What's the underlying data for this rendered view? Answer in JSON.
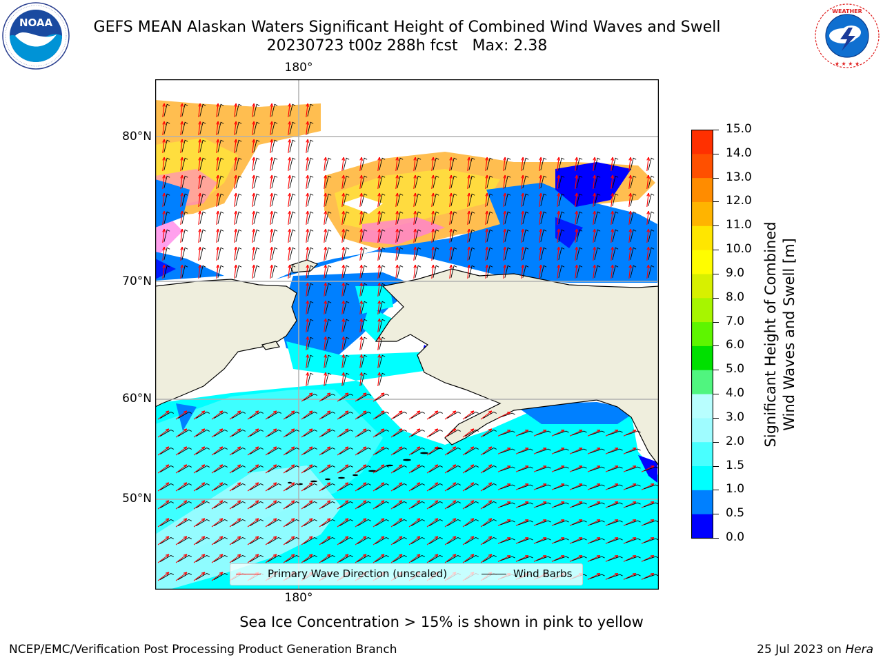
{
  "header": {
    "title": "GEFS MEAN Alaskan Waters Significant Height of Combined Wind Waves and Swell",
    "subtitle": "20230723 t00z 288h fcst   Max: 2.38"
  },
  "logos": {
    "left": {
      "name": "NOAA",
      "ring_text": "NATIONAL OCEANIC AND ATMOSPHERIC ADMINISTRATION · U.S. DEPARTMENT OF COMMERCE"
    },
    "right": {
      "ring_text": "NATIONAL WEATHER SERVICE"
    }
  },
  "map": {
    "lon_label_top": "180°",
    "lon_label_bottom": "180°",
    "lat_labels": [
      "80°N",
      "70°N",
      "60°N",
      "50°N"
    ],
    "legend": {
      "wave_label": "Primary Wave Direction (unscaled)",
      "wind_label": "Wind Barbs",
      "wave_color": "#ff0000",
      "wind_color": "#000000"
    },
    "colors": {
      "land": "#efeedd",
      "ice_pink": "#ff77e6",
      "ice_orange": "#ffbe50",
      "ice_yellow": "#ffe13c",
      "wave_blue": "#0080ff",
      "wave_darkblue": "#0000ff",
      "wave_cyan": "#00ffff",
      "wave_lightcyan": "#9ffcff",
      "grid": "#b0b0b0"
    }
  },
  "colorbar": {
    "label": "Significant Height of Combined Wind Waves and Swell [m]",
    "label_lines": [
      "Significant Height of Combined",
      "Wind Waves and Swell [m]"
    ],
    "ticks": [
      "0.0",
      "0.5",
      "1.0",
      "1.5",
      "2.0",
      "3.0",
      "4.0",
      "5.0",
      "6.0",
      "7.0",
      "8.0",
      "9.0",
      "10.0",
      "11.0",
      "12.0",
      "13.0",
      "14.0",
      "15.0"
    ],
    "colors": [
      "#0000ff",
      "#0080ff",
      "#00ffff",
      "#49ffff",
      "#9ffcff",
      "#b8fefe",
      "#50f57f",
      "#00e000",
      "#5ef500",
      "#a7f500",
      "#d7f000",
      "#fffd00",
      "#ffe600",
      "#ffb400",
      "#ff8c00",
      "#ff5000",
      "#ff3000",
      "#ff0000"
    ]
  },
  "caption": "Sea Ice Concentration > 15% is shown in pink to yellow",
  "footer": {
    "left": "NCEP/EMC/Verification Post Processing Product Generation Branch",
    "right_prefix": "25 Jul 2023 on ",
    "right_host": "Hera"
  }
}
